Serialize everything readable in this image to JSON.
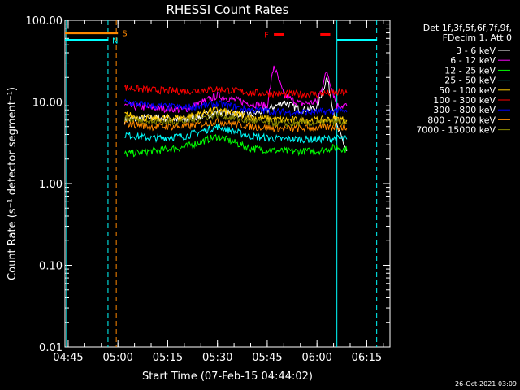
{
  "chart_data": {
    "type": "line",
    "title": "RHESSI Count Rates",
    "xlabel": "Start Time (07-Feb-15 04:44:02)",
    "ylabel": "Count Rate (s⁻¹ detector segment⁻¹)",
    "yscale": "log",
    "ylim": [
      0.01,
      100
    ],
    "xlim": [
      "04:44:02",
      "06:22"
    ],
    "y_ticks": [
      "0.01",
      "0.10",
      "1.00",
      "10.00",
      "100.00"
    ],
    "x_ticks": [
      "04:45",
      "05:00",
      "05:15",
      "05:30",
      "05:45",
      "06:00",
      "06:15"
    ],
    "legend_title": [
      "Det 1f,3f,5f,6f,7f,9f,",
      "FDecim 1, Att 0"
    ],
    "legend_placement": "right",
    "timestamp": "26-Oct-2021 03:09",
    "series": [
      {
        "name": "3 - 6 keV",
        "color": "#ffffff",
        "t": [
          "05:02",
          "05:10",
          "05:20",
          "05:30",
          "05:40",
          "05:45",
          "05:50",
          "05:55",
          "06:00",
          "06:03",
          "06:06",
          "06:09"
        ],
        "y": [
          6.0,
          6.5,
          6.0,
          7.5,
          7.0,
          8.0,
          10.0,
          8.0,
          8.5,
          20.0,
          5.0,
          2.5
        ]
      },
      {
        "name": "6 - 12 keV",
        "color": "#ff00ff",
        "t": [
          "05:02",
          "05:10",
          "05:20",
          "05:30",
          "05:40",
          "05:45",
          "05:47",
          "05:50",
          "05:55",
          "06:00",
          "06:03",
          "06:06",
          "06:09"
        ],
        "y": [
          9.0,
          8.5,
          8.0,
          12.0,
          9.5,
          9.0,
          28.0,
          12.0,
          9.5,
          10.0,
          24.0,
          9.0,
          9.0
        ]
      },
      {
        "name": "12 - 25 keV",
        "color": "#00ff00",
        "t": [
          "05:02",
          "05:10",
          "05:20",
          "05:30",
          "05:40",
          "05:50",
          "06:00",
          "06:06",
          "06:09"
        ],
        "y": [
          2.3,
          2.5,
          2.8,
          3.8,
          2.7,
          2.5,
          2.5,
          2.8,
          2.6
        ]
      },
      {
        "name": "25 - 50 keV",
        "color": "#00ffff",
        "t": [
          "05:02",
          "05:10",
          "05:20",
          "05:30",
          "05:40",
          "05:50",
          "06:00",
          "06:06",
          "06:09"
        ],
        "y": [
          4.0,
          3.6,
          3.8,
          5.0,
          3.8,
          3.5,
          3.5,
          3.6,
          3.5
        ]
      },
      {
        "name": "50 - 100 keV",
        "color": "#ffcc00",
        "t": [
          "05:02",
          "05:10",
          "05:20",
          "05:30",
          "05:40",
          "05:50",
          "06:00",
          "06:06",
          "06:09"
        ],
        "y": [
          7.0,
          6.2,
          6.5,
          8.0,
          6.5,
          6.0,
          6.0,
          6.2,
          6.0
        ]
      },
      {
        "name": "100 - 300 keV",
        "color": "#ff0000",
        "t": [
          "05:02",
          "05:10",
          "05:20",
          "05:30",
          "05:40",
          "05:50",
          "06:00",
          "06:06",
          "06:09"
        ],
        "y": [
          15.0,
          14.0,
          13.5,
          14.5,
          13.0,
          12.5,
          12.5,
          13.0,
          13.0
        ]
      },
      {
        "name": "300 - 800 keV",
        "color": "#0000ff",
        "t": [
          "05:02",
          "05:10",
          "05:20",
          "05:30",
          "05:40",
          "05:50",
          "06:00",
          "06:06",
          "06:09"
        ],
        "y": [
          10.0,
          9.0,
          8.5,
          9.5,
          8.0,
          7.5,
          7.5,
          7.8,
          7.5
        ]
      },
      {
        "name": "800 - 7000 keV",
        "color": "#ff8800",
        "t": [
          "05:02",
          "05:10",
          "05:20",
          "05:30",
          "05:40",
          "05:50",
          "06:00",
          "06:06",
          "06:09"
        ],
        "y": [
          5.5,
          5.0,
          5.0,
          5.8,
          5.0,
          4.7,
          4.8,
          5.0,
          4.8
        ]
      },
      {
        "name": "7000 - 15000 keV",
        "color": "#888800",
        "t": [
          "05:02",
          "05:10",
          "05:20",
          "05:30",
          "05:40",
          "05:50",
          "06:00",
          "06:06",
          "06:09"
        ],
        "y": [
          6.3,
          5.7,
          5.8,
          7.0,
          5.8,
          5.4,
          5.5,
          5.7,
          5.5
        ]
      }
    ],
    "annotations": [
      {
        "label": "S",
        "color": "#ff8800",
        "t_start": "04:44:02",
        "t_end": "05:00",
        "y": 70
      },
      {
        "label": "N",
        "color": "#00ffff",
        "t_start": "04:44:02",
        "t_end": "04:57",
        "y": 57
      },
      {
        "label": "",
        "color": "#00ffff",
        "t_start": "06:06",
        "t_end": "06:18",
        "y": 57
      },
      {
        "label": "F",
        "color": "#ff0000",
        "t_start": "05:47",
        "t_end": "05:50",
        "y": 67
      },
      {
        "label": "",
        "color": "#ff0000",
        "t_start": "06:01",
        "t_end": "06:04",
        "y": 67
      }
    ],
    "vertical_lines": [
      {
        "t": "04:44:30",
        "color": "#00ffff",
        "style": "solid"
      },
      {
        "t": "04:57",
        "color": "#00ffff",
        "style": "dashed"
      },
      {
        "t": "04:59:30",
        "color": "#ff8800",
        "style": "dashed"
      },
      {
        "t": "06:06",
        "color": "#00ffff",
        "style": "solid"
      },
      {
        "t": "06:18",
        "color": "#00ffff",
        "style": "dashed"
      }
    ]
  }
}
